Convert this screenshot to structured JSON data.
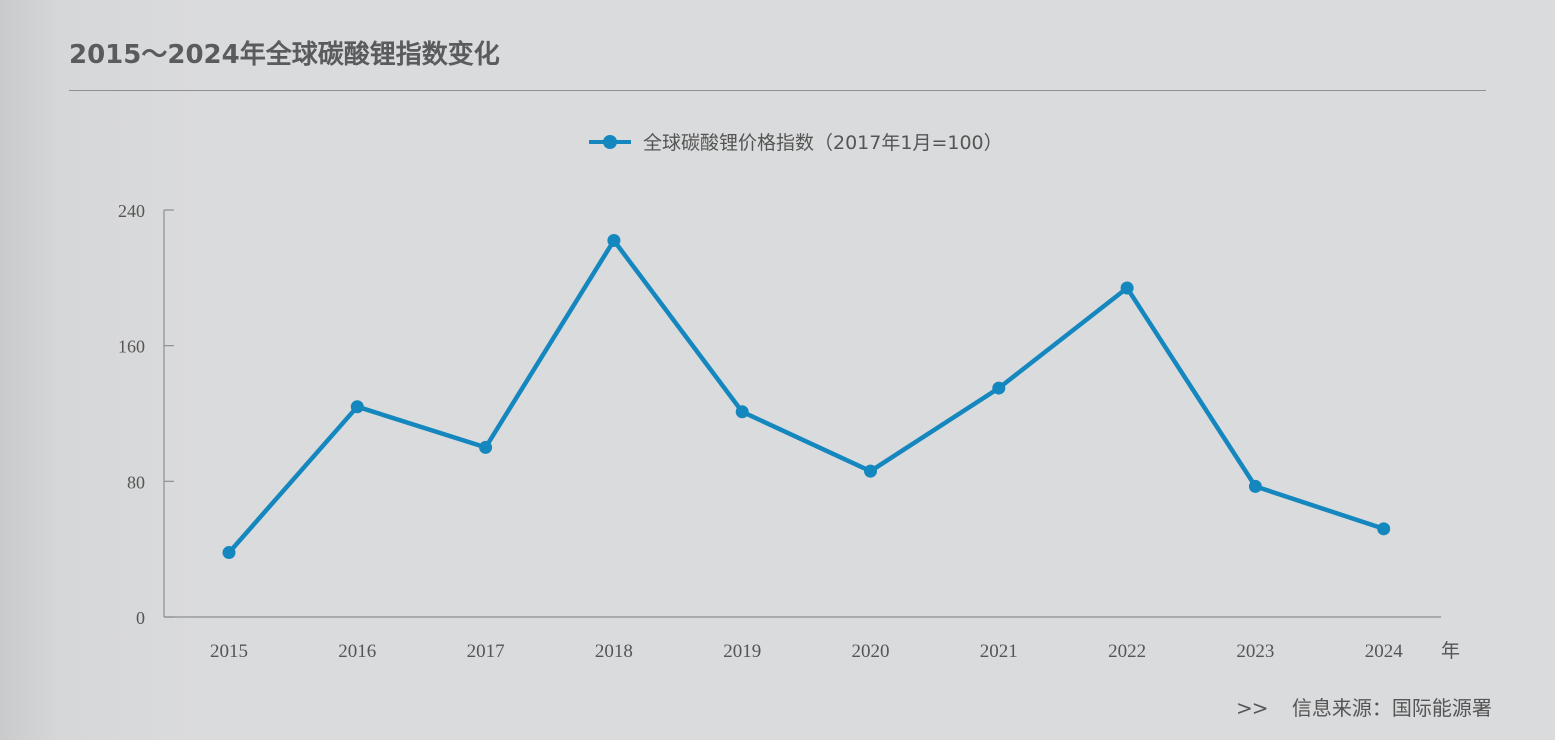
{
  "title": "2015～2024年全球碳酸锂指数变化",
  "source": {
    "prefix": ">>",
    "text": "信息来源：国际能源署"
  },
  "colors": {
    "series": "#1587bf",
    "axis": "#8e8f90",
    "text": "#555555",
    "title": "#5a5b5c"
  },
  "chart_data": {
    "type": "line",
    "categories": [
      "2015",
      "2016",
      "2017",
      "2018",
      "2019",
      "2020",
      "2021",
      "2022",
      "2023",
      "2024"
    ],
    "series": [
      {
        "name": "全球碳酸锂价格指数（2017年1月=100）",
        "values": [
          38,
          124,
          100,
          222,
          121,
          86,
          135,
          194,
          77,
          52
        ],
        "marker": "circle"
      }
    ],
    "xlabel": "年",
    "ylabel": "",
    "ylim": [
      0,
      240
    ],
    "yticks": [
      0,
      80,
      160,
      240
    ],
    "grid": false,
    "legend": "top-center"
  }
}
